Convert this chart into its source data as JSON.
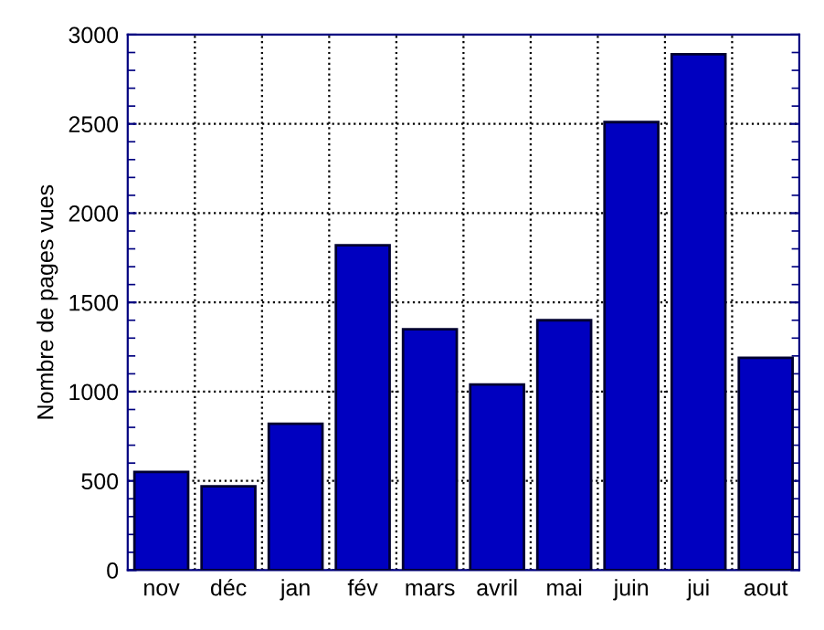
{
  "chart_data": {
    "type": "bar",
    "ylabel": "Nombre de pages vues",
    "categories": [
      "nov",
      "déc",
      "jan",
      "fév",
      "mars",
      "avril",
      "mai",
      "juin",
      "jui",
      "aout"
    ],
    "values": [
      550,
      470,
      820,
      1820,
      1350,
      1040,
      1400,
      2510,
      2890,
      1190
    ],
    "color": "#0000c0",
    "ylim": [
      0,
      3000
    ],
    "yticks": [
      0,
      500,
      1000,
      1500,
      2000,
      2500,
      3000
    ],
    "grid": true
  }
}
